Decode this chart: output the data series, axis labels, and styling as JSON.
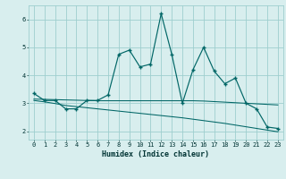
{
  "xlabel": "Humidex (Indice chaleur)",
  "x": [
    0,
    1,
    2,
    3,
    4,
    5,
    6,
    7,
    8,
    9,
    10,
    11,
    12,
    13,
    14,
    15,
    16,
    17,
    18,
    19,
    20,
    21,
    22,
    23
  ],
  "y_main": [
    3.35,
    3.1,
    3.1,
    2.8,
    2.8,
    3.1,
    3.1,
    3.3,
    4.75,
    4.9,
    4.3,
    4.4,
    6.2,
    4.75,
    3.0,
    4.2,
    5.0,
    4.15,
    3.7,
    3.9,
    3.0,
    2.8,
    2.15,
    2.1
  ],
  "y_trend1": [
    3.15,
    3.14,
    3.13,
    3.12,
    3.11,
    3.1,
    3.09,
    3.09,
    3.09,
    3.09,
    3.09,
    3.09,
    3.09,
    3.09,
    3.09,
    3.09,
    3.08,
    3.06,
    3.04,
    3.02,
    3.0,
    2.98,
    2.96,
    2.94
  ],
  "y_trend2": [
    3.1,
    3.05,
    2.99,
    2.92,
    2.88,
    2.84,
    2.8,
    2.76,
    2.72,
    2.68,
    2.64,
    2.6,
    2.56,
    2.52,
    2.48,
    2.43,
    2.38,
    2.33,
    2.28,
    2.22,
    2.16,
    2.1,
    2.04,
    1.98
  ],
  "line_color": "#006666",
  "bg_color": "#d8eeee",
  "grid_color": "#9ecece",
  "ylim": [
    1.7,
    6.5
  ],
  "xlim": [
    -0.5,
    23.5
  ],
  "yticks": [
    2,
    3,
    4,
    5,
    6
  ],
  "xticks": [
    0,
    1,
    2,
    3,
    4,
    5,
    6,
    7,
    8,
    9,
    10,
    11,
    12,
    13,
    14,
    15,
    16,
    17,
    18,
    19,
    20,
    21,
    22,
    23
  ],
  "tick_fontsize": 5.0,
  "xlabel_fontsize": 6.0
}
